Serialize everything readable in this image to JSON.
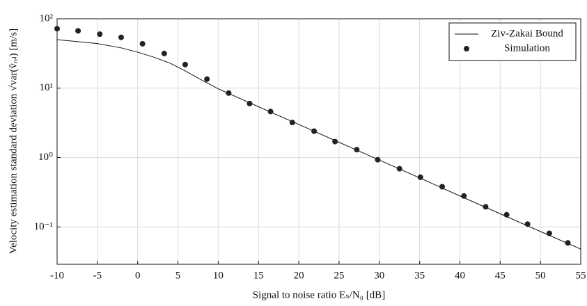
{
  "chart_data": {
    "type": "line",
    "xlabel": "Signal to noise ratio Eₛ/N₀ [dB]",
    "ylabel": "Velocity estimation standard deviation √var(v̂ᵣₑₗ) [m/s]",
    "xlim": [
      -10,
      55
    ],
    "xticks": [
      -10,
      -5,
      0,
      5,
      10,
      15,
      20,
      25,
      30,
      35,
      40,
      45,
      50,
      55
    ],
    "ylim": [
      0.029,
      100
    ],
    "yscale": "log",
    "yticks": [
      {
        "value": 0.1,
        "label": "10⁻¹"
      },
      {
        "value": 1,
        "label": "10⁰"
      },
      {
        "value": 10,
        "label": "10¹"
      },
      {
        "value": 100,
        "label": "10²"
      }
    ],
    "grid": true,
    "legend": "upper right",
    "series": [
      {
        "name": "Ziv-Zakai Bound",
        "style": "line",
        "color": "#111111",
        "x": [
          -10,
          -5,
          -2,
          0,
          2,
          4,
          6,
          8,
          10,
          15,
          20,
          25,
          30,
          35,
          40,
          45,
          50,
          55
        ],
        "values": [
          50,
          44,
          38,
          33,
          28,
          23,
          17.5,
          13,
          9.8,
          5.4,
          3.0,
          1.66,
          0.92,
          0.51,
          0.28,
          0.155,
          0.086,
          0.048
        ]
      },
      {
        "name": "Simulation",
        "style": "markers",
        "color": "#222222",
        "x": [
          -10,
          -7.4,
          -4.7,
          -2.05,
          0.6,
          3.3,
          5.9,
          8.6,
          11.3,
          13.9,
          16.5,
          19.2,
          21.9,
          24.5,
          27.2,
          29.8,
          32.5,
          35.1,
          37.8,
          40.5,
          43.2,
          45.8,
          48.4,
          51.1,
          53.4
        ],
        "values": [
          72,
          67,
          60,
          54,
          43.6,
          31.6,
          21.9,
          13.5,
          8.5,
          6.0,
          4.6,
          3.2,
          2.4,
          1.7,
          1.3,
          0.93,
          0.69,
          0.52,
          0.38,
          0.28,
          0.195,
          0.15,
          0.11,
          0.081,
          0.059
        ]
      }
    ]
  }
}
